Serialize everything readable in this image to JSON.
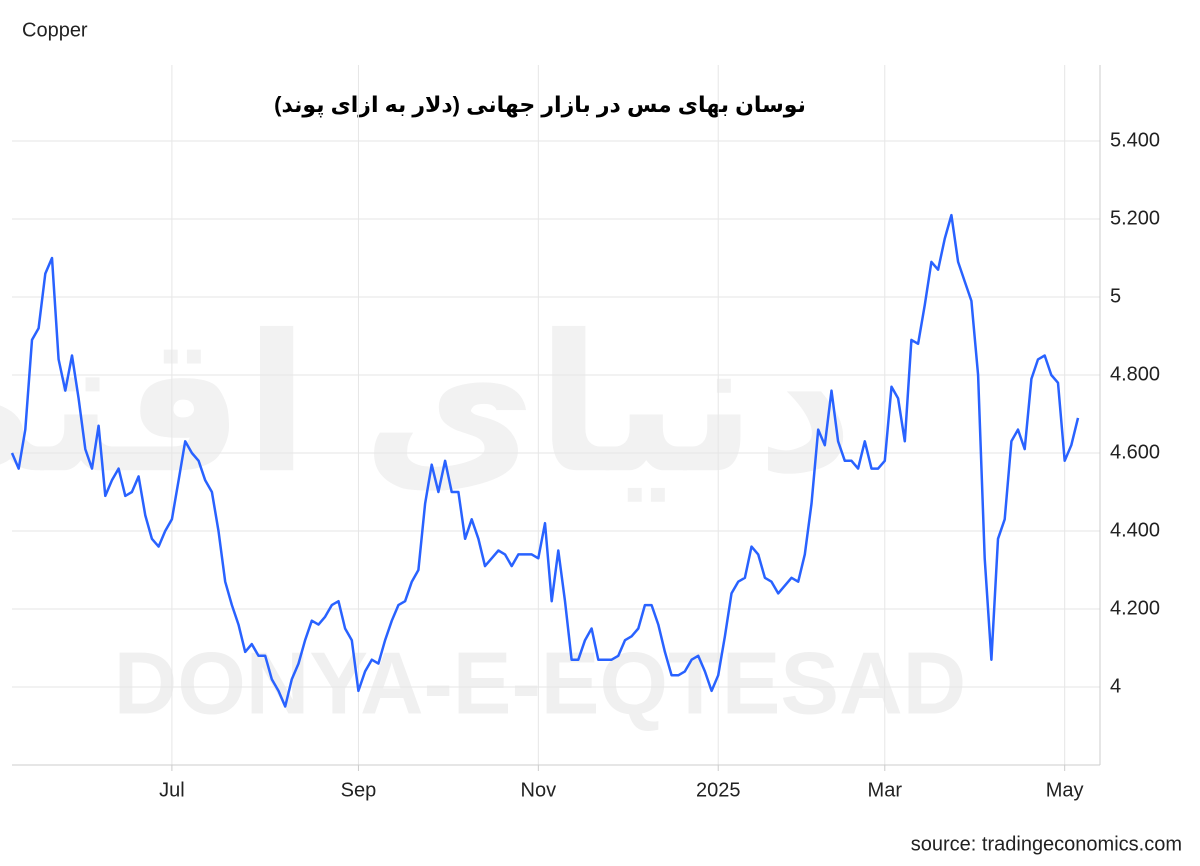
{
  "chart_data": {
    "type": "line",
    "title": "نوسان بهای مس در بازار جهانی (دلار به ازای پوند)",
    "source": "source: tradingeconomics.com",
    "watermarks": [
      "دنیای اقتصاد",
      "DONYA-E-EQTESAD"
    ],
    "categories": [
      null,
      null,
      null,
      null,
      null,
      null,
      null,
      null,
      null,
      null,
      null,
      null,
      null,
      null,
      null,
      null,
      null,
      null,
      null,
      null,
      null,
      null,
      null,
      null,
      "Jul",
      null,
      null,
      null,
      null,
      null,
      null,
      null,
      null,
      null,
      null,
      null,
      null,
      null,
      null,
      null,
      null,
      null,
      null,
      null,
      null,
      null,
      null,
      null,
      null,
      null,
      null,
      null,
      "Sep",
      null,
      null,
      null,
      null,
      null,
      null,
      null,
      null,
      null,
      null,
      null,
      null,
      null,
      null,
      null,
      null,
      null,
      null,
      null,
      null,
      null,
      null,
      null,
      null,
      null,
      null,
      "Nov",
      null,
      null,
      null,
      null,
      null,
      null,
      null,
      null,
      null,
      null,
      null,
      null,
      null,
      null,
      null,
      null,
      null,
      null,
      null,
      null,
      null,
      null,
      null,
      null,
      null,
      null,
      "2025",
      null,
      null,
      null,
      null,
      null,
      null,
      null,
      null,
      null,
      null,
      null,
      null,
      null,
      null,
      null,
      null,
      null,
      null,
      null,
      null,
      null,
      null,
      null,
      null,
      "Mar",
      null,
      null,
      null,
      null,
      null,
      null,
      null,
      null,
      null,
      null,
      null,
      null,
      null,
      null,
      null,
      null,
      null,
      null,
      null,
      null,
      null,
      null,
      null,
      null,
      null,
      null,
      "May",
      null,
      null
    ],
    "series": [
      {
        "name": "Copper",
        "color": "#2962ff",
        "values": [
          4.6,
          4.56,
          4.66,
          4.89,
          4.92,
          5.06,
          5.1,
          4.84,
          4.76,
          4.85,
          4.74,
          4.61,
          4.56,
          4.67,
          4.49,
          4.53,
          4.56,
          4.49,
          4.5,
          4.54,
          4.44,
          4.38,
          4.36,
          4.4,
          4.43,
          4.53,
          4.63,
          4.6,
          4.58,
          4.53,
          4.5,
          4.4,
          4.27,
          4.21,
          4.16,
          4.09,
          4.11,
          4.08,
          4.08,
          4.02,
          3.99,
          3.95,
          4.02,
          4.06,
          4.12,
          4.17,
          4.16,
          4.18,
          4.21,
          4.22,
          4.15,
          4.12,
          3.99,
          4.04,
          4.07,
          4.06,
          4.12,
          4.17,
          4.21,
          4.22,
          4.27,
          4.3,
          4.47,
          4.57,
          4.5,
          4.58,
          4.5,
          4.5,
          4.38,
          4.43,
          4.38,
          4.31,
          4.33,
          4.35,
          4.34,
          4.31,
          4.34,
          4.34,
          4.34,
          4.33,
          4.42,
          4.22,
          4.35,
          4.22,
          4.07,
          4.07,
          4.12,
          4.15,
          4.07,
          4.07,
          4.07,
          4.08,
          4.12,
          4.13,
          4.15,
          4.21,
          4.21,
          4.16,
          4.09,
          4.03,
          4.03,
          4.04,
          4.07,
          4.08,
          4.04,
          3.99,
          4.03,
          4.13,
          4.24,
          4.27,
          4.28,
          4.36,
          4.34,
          4.28,
          4.27,
          4.24,
          4.26,
          4.28,
          4.27,
          4.34,
          4.47,
          4.66,
          4.62,
          4.76,
          4.63,
          4.58,
          4.58,
          4.56,
          4.63,
          4.56,
          4.56,
          4.58,
          4.77,
          4.74,
          4.63,
          4.89,
          4.88,
          4.98,
          5.09,
          5.07,
          5.15,
          5.21,
          5.09,
          5.04,
          4.99,
          4.8,
          4.33,
          4.07,
          4.38,
          4.43,
          4.63,
          4.66,
          4.61,
          4.79,
          4.84,
          4.85,
          4.8,
          4.78,
          4.58,
          4.62,
          4.69
        ]
      }
    ],
    "ylim": [
      3.8,
      5.595
    ],
    "yticks": [
      4,
      {
        "value": 4.2,
        "label": "4.200"
      },
      {
        "value": 4.4,
        "label": "4.400"
      },
      {
        "value": 4.6,
        "label": "4.600"
      },
      {
        "value": 4.8,
        "label": "4.800"
      },
      5,
      {
        "value": 5.2,
        "label": "5.200"
      },
      {
        "value": 5.4,
        "label": "5.400"
      }
    ],
    "grid": true
  }
}
